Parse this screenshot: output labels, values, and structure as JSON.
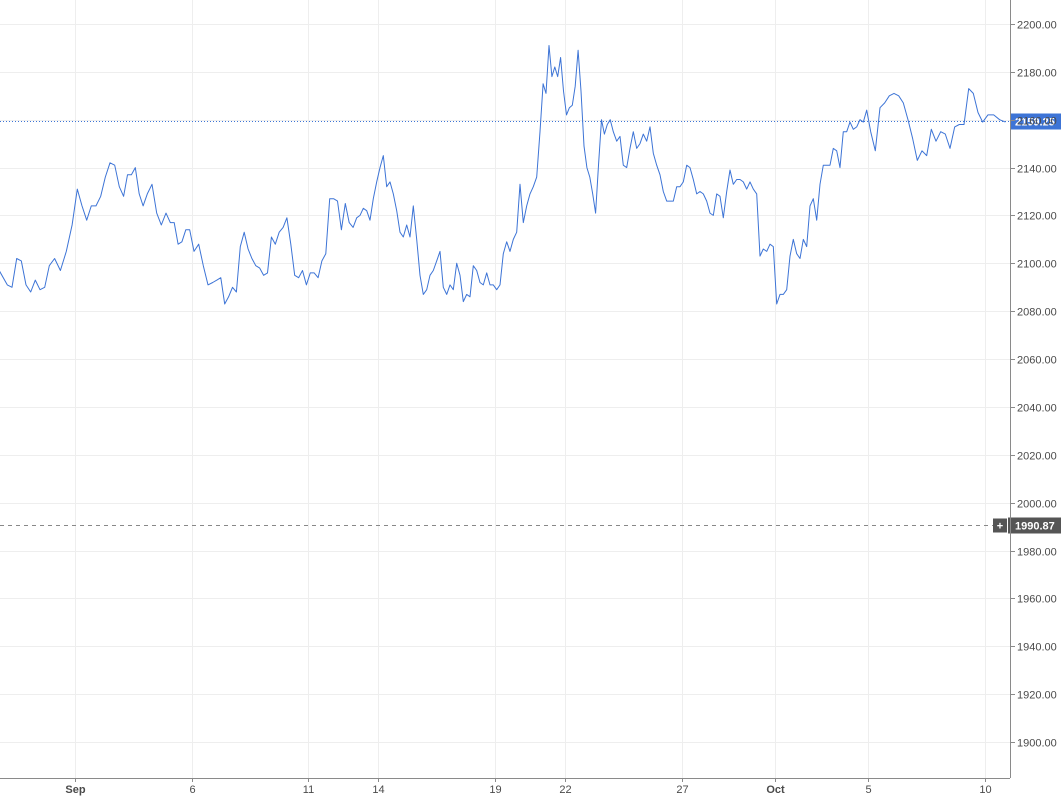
{
  "chart_data": {
    "type": "line",
    "title": "",
    "xlabel": "",
    "ylabel": "",
    "ylim": [
      1885,
      2210
    ],
    "y_ticks": [
      1900,
      1920,
      1940,
      1960,
      1980,
      2000,
      2020,
      2040,
      2060,
      2080,
      2100,
      2120,
      2140,
      2160,
      2180,
      2200
    ],
    "y_tick_labels": [
      "1900.00",
      "1920.00",
      "1940.00",
      "1960.00",
      "1980.00",
      "2000.00",
      "2020.00",
      "2040.00",
      "2060.00",
      "2080.00",
      "2100.00",
      "2120.00",
      "2140.00",
      "2160.00",
      "2180.00",
      "2200.00"
    ],
    "x_range": [
      "Aug 28",
      "Oct 11"
    ],
    "x_ticks": [
      {
        "date": "Sep 1",
        "label": "Sep",
        "bold": true
      },
      {
        "date": "Sep 6",
        "label": "6",
        "bold": false
      },
      {
        "date": "Sep 11",
        "label": "11",
        "bold": false
      },
      {
        "date": "Sep 14",
        "label": "14",
        "bold": false
      },
      {
        "date": "Sep 19",
        "label": "19",
        "bold": false
      },
      {
        "date": "Sep 22",
        "label": "22",
        "bold": false
      },
      {
        "date": "Sep 27",
        "label": "27",
        "bold": false
      },
      {
        "date": "Oct 1",
        "label": "Oct",
        "bold": true
      },
      {
        "date": "Oct 5",
        "label": "5",
        "bold": false
      },
      {
        "date": "Oct 10",
        "label": "10",
        "bold": false
      }
    ],
    "grid": true,
    "series": [
      {
        "color": "#3d74d6",
        "points": [
          [
            "Aug 28",
            2096
          ],
          [
            "Aug 28",
            2097
          ],
          [
            "Aug 29",
            2091
          ],
          [
            "Aug 29",
            2090
          ],
          [
            "Aug 29",
            2102
          ],
          [
            "Aug 29",
            2101
          ],
          [
            "Aug 29",
            2091
          ],
          [
            "Aug 30",
            2088
          ],
          [
            "Aug 30",
            2093
          ],
          [
            "Aug 30",
            2089
          ],
          [
            "Aug 30",
            2090
          ],
          [
            "Aug 30",
            2099
          ],
          [
            "Aug 31",
            2102
          ],
          [
            "Aug 31",
            2097
          ],
          [
            "Aug 31",
            2105
          ],
          [
            "Aug 31",
            2116
          ],
          [
            "Sep 1",
            2131
          ],
          [
            "Sep 1",
            2124
          ],
          [
            "Sep 1",
            2118
          ],
          [
            "Sep 1",
            2124
          ],
          [
            "Sep 1",
            2124
          ],
          [
            "Sep 2",
            2128
          ],
          [
            "Sep 2",
            2136
          ],
          [
            "Sep 2",
            2142
          ],
          [
            "Sep 2",
            2141
          ],
          [
            "Sep 2",
            2132
          ],
          [
            "Sep 3",
            2128
          ],
          [
            "Sep 3",
            2137
          ],
          [
            "Sep 3",
            2137
          ],
          [
            "Sep 3",
            2140
          ],
          [
            "Sep 3",
            2129
          ],
          [
            "Sep 3",
            2124
          ],
          [
            "Sep 4",
            2129
          ],
          [
            "Sep 4",
            2133
          ],
          [
            "Sep 4",
            2121
          ],
          [
            "Sep 4",
            2116
          ],
          [
            "Sep 4",
            2121
          ],
          [
            "Sep 5",
            2117
          ],
          [
            "Sep 5",
            2117
          ],
          [
            "Sep 5",
            2108
          ],
          [
            "Sep 5",
            2109
          ],
          [
            "Sep 5",
            2114
          ],
          [
            "Sep 5",
            2114
          ],
          [
            "Sep 6",
            2105
          ],
          [
            "Sep 6",
            2108
          ],
          [
            "Sep 6",
            2099
          ],
          [
            "Sep 6",
            2091
          ],
          [
            "Sep 6",
            2092
          ],
          [
            "Sep 7",
            2093
          ],
          [
            "Sep 7",
            2094
          ],
          [
            "Sep 7",
            2083
          ],
          [
            "Sep 7",
            2086
          ],
          [
            "Sep 7",
            2090
          ],
          [
            "Sep 7",
            2088
          ],
          [
            "Sep 8",
            2107
          ],
          [
            "Sep 8",
            2113
          ],
          [
            "Sep 8",
            2106
          ],
          [
            "Sep 8",
            2102
          ],
          [
            "Sep 8",
            2099
          ],
          [
            "Sep 8",
            2098
          ],
          [
            "Sep 9",
            2095
          ],
          [
            "Sep 9",
            2096
          ],
          [
            "Sep 9",
            2111
          ],
          [
            "Sep 9",
            2108
          ],
          [
            "Sep 9",
            2113
          ],
          [
            "Sep 9",
            2115
          ],
          [
            "Sep 10",
            2119
          ],
          [
            "Sep 10",
            2108
          ],
          [
            "Sep 10",
            2095
          ],
          [
            "Sep 10",
            2094
          ],
          [
            "Sep 10",
            2097
          ],
          [
            "Sep 10",
            2091
          ],
          [
            "Sep 11",
            2096
          ],
          [
            "Sep 11",
            2096
          ],
          [
            "Sep 11",
            2094
          ],
          [
            "Sep 11",
            2101
          ],
          [
            "Sep 11",
            2104
          ],
          [
            "Sep 11",
            2127
          ],
          [
            "Sep 12",
            2127
          ],
          [
            "Sep 12",
            2126
          ],
          [
            "Sep 12",
            2114
          ],
          [
            "Sep 12",
            2125
          ],
          [
            "Sep 12",
            2117
          ],
          [
            "Sep 12",
            2115
          ],
          [
            "Sep 13",
            2119
          ],
          [
            "Sep 13",
            2120
          ],
          [
            "Sep 13",
            2123
          ],
          [
            "Sep 13",
            2122
          ],
          [
            "Sep 13",
            2118
          ],
          [
            "Sep 13",
            2127
          ],
          [
            "Sep 13",
            2134
          ],
          [
            "Sep 14",
            2140
          ],
          [
            "Sep 14",
            2145
          ],
          [
            "Sep 14",
            2132
          ],
          [
            "Sep 14",
            2134
          ],
          [
            "Sep 14",
            2129
          ],
          [
            "Sep 14",
            2122
          ],
          [
            "Sep 14",
            2113
          ],
          [
            "Sep 15",
            2111
          ],
          [
            "Sep 15",
            2116
          ],
          [
            "Sep 15",
            2111
          ],
          [
            "Sep 15",
            2124
          ],
          [
            "Sep 15",
            2110
          ],
          [
            "Sep 15",
            2095
          ],
          [
            "Sep 15",
            2087
          ],
          [
            "Sep 16",
            2089
          ],
          [
            "Sep 16",
            2095
          ],
          [
            "Sep 16",
            2097
          ],
          [
            "Sep 16",
            2101
          ],
          [
            "Sep 16",
            2105
          ],
          [
            "Sep 16",
            2090
          ],
          [
            "Sep 16",
            2087
          ],
          [
            "Sep 17",
            2091
          ],
          [
            "Sep 17",
            2089
          ],
          [
            "Sep 17",
            2100
          ],
          [
            "Sep 17",
            2095
          ],
          [
            "Sep 17",
            2084
          ],
          [
            "Sep 17",
            2087
          ],
          [
            "Sep 17",
            2086
          ],
          [
            "Sep 18",
            2099
          ],
          [
            "Sep 18",
            2097
          ],
          [
            "Sep 18",
            2092
          ],
          [
            "Sep 18",
            2091
          ],
          [
            "Sep 18",
            2096
          ],
          [
            "Sep 18",
            2091
          ],
          [
            "Sep 18",
            2091
          ],
          [
            "Sep 19",
            2089
          ],
          [
            "Sep 19",
            2091
          ],
          [
            "Sep 19",
            2104
          ],
          [
            "Sep 19",
            2109
          ],
          [
            "Sep 19",
            2105
          ],
          [
            "Sep 19",
            2110
          ],
          [
            "Sep 19",
            2113
          ],
          [
            "Sep 20",
            2133
          ],
          [
            "Sep 20",
            2117
          ],
          [
            "Sep 20",
            2124
          ],
          [
            "Sep 20",
            2129
          ],
          [
            "Sep 20",
            2132
          ],
          [
            "Sep 20",
            2136
          ],
          [
            "Sep 20",
            2155
          ],
          [
            "Sep 21",
            2175
          ],
          [
            "Sep 21",
            2171
          ],
          [
            "Sep 21",
            2191
          ],
          [
            "Sep 21",
            2178
          ],
          [
            "Sep 21",
            2182
          ],
          [
            "Sep 21",
            2178
          ],
          [
            "Sep 21",
            2186
          ],
          [
            "Sep 21",
            2172
          ],
          [
            "Sep 22",
            2162
          ],
          [
            "Sep 22",
            2165
          ],
          [
            "Sep 22",
            2166
          ],
          [
            "Sep 22",
            2174
          ],
          [
            "Sep 22",
            2189
          ],
          [
            "Sep 22",
            2172
          ],
          [
            "Sep 22",
            2149
          ],
          [
            "Sep 22",
            2140
          ],
          [
            "Sep 23",
            2136
          ],
          [
            "Sep 23",
            2129
          ],
          [
            "Sep 23",
            2121
          ],
          [
            "Sep 23",
            2141
          ],
          [
            "Sep 23",
            2160
          ],
          [
            "Sep 23",
            2154
          ],
          [
            "Sep 23",
            2158
          ],
          [
            "Sep 23",
            2160
          ],
          [
            "Sep 24",
            2155
          ],
          [
            "Sep 24",
            2151
          ],
          [
            "Sep 24",
            2153
          ],
          [
            "Sep 24",
            2141
          ],
          [
            "Sep 24",
            2140
          ],
          [
            "Sep 24",
            2148
          ],
          [
            "Sep 24",
            2155
          ],
          [
            "Sep 25",
            2148
          ],
          [
            "Sep 25",
            2150
          ],
          [
            "Sep 25",
            2154
          ],
          [
            "Sep 25",
            2151
          ],
          [
            "Sep 25",
            2157
          ],
          [
            "Sep 25",
            2146
          ],
          [
            "Sep 25",
            2141
          ],
          [
            "Sep 26",
            2137
          ],
          [
            "Sep 26",
            2130
          ],
          [
            "Sep 26",
            2126
          ],
          [
            "Sep 26",
            2126
          ],
          [
            "Sep 26",
            2126
          ],
          [
            "Sep 26",
            2132
          ],
          [
            "Sep 26",
            2132
          ],
          [
            "Sep 27",
            2134
          ],
          [
            "Sep 27",
            2141
          ],
          [
            "Sep 27",
            2140
          ],
          [
            "Sep 27",
            2135
          ],
          [
            "Sep 27",
            2129
          ],
          [
            "Sep 27",
            2130
          ],
          [
            "Sep 27",
            2129
          ],
          [
            "Sep 28",
            2126
          ],
          [
            "Sep 28",
            2121
          ],
          [
            "Sep 28",
            2120
          ],
          [
            "Sep 28",
            2129
          ],
          [
            "Sep 28",
            2128
          ],
          [
            "Sep 28",
            2119
          ],
          [
            "Sep 28",
            2130
          ],
          [
            "Sep 29",
            2139
          ],
          [
            "Sep 29",
            2133
          ],
          [
            "Sep 29",
            2135
          ],
          [
            "Sep 29",
            2135
          ],
          [
            "Sep 29",
            2134
          ],
          [
            "Sep 29",
            2131
          ],
          [
            "Sep 29",
            2134
          ],
          [
            "Sep 30",
            2131
          ],
          [
            "Sep 30",
            2129
          ],
          [
            "Sep 30",
            2103
          ],
          [
            "Sep 30",
            2106
          ],
          [
            "Sep 30",
            2105
          ],
          [
            "Sep 30",
            2108
          ],
          [
            "Sep 30",
            2107
          ],
          [
            "Oct 1",
            2083
          ],
          [
            "Oct 1",
            2087
          ],
          [
            "Oct 1",
            2087
          ],
          [
            "Oct 1",
            2089
          ],
          [
            "Oct 1",
            2103
          ],
          [
            "Oct 1",
            2110
          ],
          [
            "Oct 1",
            2104
          ],
          [
            "Oct 2",
            2102
          ],
          [
            "Oct 2",
            2110
          ],
          [
            "Oct 2",
            2107
          ],
          [
            "Oct 2",
            2124
          ],
          [
            "Oct 2",
            2127
          ],
          [
            "Oct 2",
            2118
          ],
          [
            "Oct 2",
            2133
          ],
          [
            "Oct 3",
            2141
          ],
          [
            "Oct 3",
            2141
          ],
          [
            "Oct 3",
            2141
          ],
          [
            "Oct 3",
            2148
          ],
          [
            "Oct 3",
            2147
          ],
          [
            "Oct 3",
            2140
          ],
          [
            "Oct 3",
            2155
          ],
          [
            "Oct 4",
            2155
          ],
          [
            "Oct 4",
            2159
          ],
          [
            "Oct 4",
            2156
          ],
          [
            "Oct 4",
            2157
          ],
          [
            "Oct 4",
            2160
          ],
          [
            "Oct 4",
            2159
          ],
          [
            "Oct 4",
            2164
          ],
          [
            "Oct 5",
            2155
          ],
          [
            "Oct 5",
            2147
          ],
          [
            "Oct 5",
            2165
          ],
          [
            "Oct 5",
            2167
          ],
          [
            "Oct 5",
            2170
          ],
          [
            "Oct 6",
            2171
          ],
          [
            "Oct 6",
            2170
          ],
          [
            "Oct 6",
            2167
          ],
          [
            "Oct 6",
            2160
          ],
          [
            "Oct 6",
            2152
          ],
          [
            "Oct 7",
            2143
          ],
          [
            "Oct 7",
            2147
          ],
          [
            "Oct 7",
            2145
          ],
          [
            "Oct 7",
            2156
          ],
          [
            "Oct 7",
            2151
          ],
          [
            "Oct 8",
            2155
          ],
          [
            "Oct 8",
            2154
          ],
          [
            "Oct 8",
            2148
          ],
          [
            "Oct 8",
            2157
          ],
          [
            "Oct 8",
            2158
          ],
          [
            "Oct 9",
            2158
          ],
          [
            "Oct 9",
            2173
          ],
          [
            "Oct 9",
            2171
          ],
          [
            "Oct 9",
            2163
          ],
          [
            "Oct 9",
            2159
          ],
          [
            "Oct 10",
            2162
          ],
          [
            "Oct 10",
            2162
          ],
          [
            "Oct 10",
            2160
          ],
          [
            "Oct 10",
            2159
          ]
        ]
      }
    ],
    "last_price": {
      "value": 2159.25,
      "label": "2159.25",
      "color": "#3d74d6"
    },
    "crosshair": {
      "value": 1990.87,
      "label": "1990.87",
      "plus_symbol": "+",
      "color": "#555555"
    }
  }
}
